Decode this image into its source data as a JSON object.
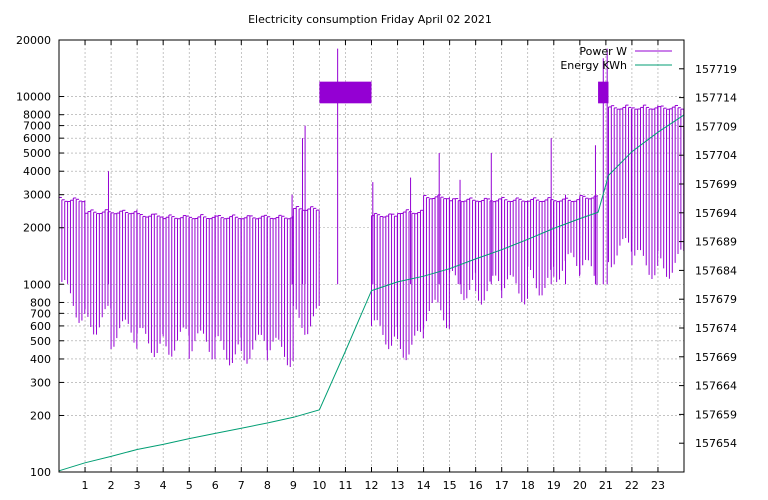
{
  "chart_data": {
    "type": "line",
    "title": "Electricity consumption Friday April 02 2021",
    "xlabel": "",
    "ylabel": "",
    "y2label": "",
    "xlim": [
      0,
      24
    ],
    "ylim": [
      100,
      20000
    ],
    "yscale": "log",
    "y2lim": [
      157649,
      157724
    ],
    "grid": true,
    "legend_position": "top-right",
    "x_ticks": [
      1,
      2,
      3,
      4,
      5,
      6,
      7,
      8,
      9,
      10,
      11,
      12,
      13,
      14,
      15,
      16,
      17,
      18,
      19,
      20,
      21,
      22,
      23
    ],
    "y_ticks": [
      {
        "value": 100,
        "label": "100"
      },
      {
        "value": 200,
        "label": "200"
      },
      {
        "value": 300,
        "label": "300"
      },
      {
        "value": 400,
        "label": "400"
      },
      {
        "value": 500,
        "label": "500"
      },
      {
        "value": 600,
        "label": "600"
      },
      {
        "value": 700,
        "label": "700"
      },
      {
        "value": 800,
        "label": "800"
      },
      {
        "value": 1000,
        "label": "1000"
      },
      {
        "value": 2000,
        "label": "2000"
      },
      {
        "value": 3000,
        "label": "3000"
      },
      {
        "value": 4000,
        "label": "4000"
      },
      {
        "value": 5000,
        "label": "5000"
      },
      {
        "value": 6000,
        "label": "6000"
      },
      {
        "value": 7000,
        "label": "7000"
      },
      {
        "value": 8000,
        "label": "8000"
      },
      {
        "value": 10000,
        "label": "10000"
      },
      {
        "value": 20000,
        "label": "20000"
      }
    ],
    "y2_ticks": [
      157654,
      157659,
      157664,
      157669,
      157674,
      157679,
      157684,
      157689,
      157694,
      157699,
      157704,
      157709,
      157714,
      157719
    ],
    "series": [
      {
        "name": "Power W",
        "axis": "y1",
        "color": "#9400d3",
        "style": "impulse-band",
        "segments": [
          {
            "x0": 0.0,
            "x1": 1.0,
            "low": 950,
            "high": 2900,
            "low_end": 700
          },
          {
            "x0": 1.0,
            "x1": 2.0,
            "low": 650,
            "high": 2500
          },
          {
            "x0": 2.0,
            "x1": 3.0,
            "low": 550,
            "high": 2500
          },
          {
            "x0": 3.0,
            "x1": 4.0,
            "low": 500,
            "high": 2400
          },
          {
            "x0": 4.0,
            "x1": 5.0,
            "low": 500,
            "high": 2350
          },
          {
            "x0": 5.0,
            "x1": 6.0,
            "low": 480,
            "high": 2350
          },
          {
            "x0": 6.0,
            "x1": 7.0,
            "low": 450,
            "high": 2350
          },
          {
            "x0": 7.0,
            "x1": 8.0,
            "low": 460,
            "high": 2350
          },
          {
            "x0": 8.0,
            "x1": 9.0,
            "low": 440,
            "high": 2350
          },
          {
            "x0": 9.0,
            "x1": 10.0,
            "low": 650,
            "high": 2600
          },
          {
            "x0": 10.0,
            "x1": 12.0,
            "low": 9200,
            "high": 12000
          },
          {
            "x0": 12.0,
            "x1": 13.0,
            "low": 550,
            "high": 2400
          },
          {
            "x0": 13.0,
            "x1": 14.0,
            "low": 480,
            "high": 2500
          },
          {
            "x0": 14.0,
            "x1": 15.0,
            "low": 700,
            "high": 3000
          },
          {
            "x0": 15.0,
            "x1": 16.0,
            "low": 1000,
            "high": 2900
          },
          {
            "x0": 16.0,
            "x1": 17.0,
            "low": 950,
            "high": 2900
          },
          {
            "x0": 17.0,
            "x1": 18.0,
            "low": 950,
            "high": 2900
          },
          {
            "x0": 18.0,
            "x1": 19.0,
            "low": 1050,
            "high": 2900
          },
          {
            "x0": 19.0,
            "x1": 20.0,
            "low": 1250,
            "high": 2900
          },
          {
            "x0": 20.0,
            "x1": 20.7,
            "low": 1150,
            "high": 3000
          },
          {
            "x0": 20.7,
            "x1": 21.1,
            "low": 9200,
            "high": 12000
          },
          {
            "x0": 21.1,
            "x1": 22.0,
            "low": 1500,
            "high": 9000
          },
          {
            "x0": 22.0,
            "x1": 23.0,
            "low": 1300,
            "high": 9000
          },
          {
            "x0": 23.0,
            "x1": 24.0,
            "low": 1300,
            "high": 9000
          }
        ],
        "spikes": [
          {
            "x": 1.9,
            "value": 4000
          },
          {
            "x": 8.95,
            "value": 3000
          },
          {
            "x": 9.35,
            "value": 6000
          },
          {
            "x": 9.45,
            "value": 7000
          },
          {
            "x": 10.7,
            "value": 18000
          },
          {
            "x": 12.05,
            "value": 3500
          },
          {
            "x": 13.5,
            "value": 3700
          },
          {
            "x": 14.6,
            "value": 5000
          },
          {
            "x": 15.4,
            "value": 3600
          },
          {
            "x": 16.6,
            "value": 5000
          },
          {
            "x": 18.9,
            "value": 6000
          },
          {
            "x": 19.45,
            "value": 3000
          },
          {
            "x": 20.6,
            "value": 5500
          },
          {
            "x": 20.9,
            "value": 16000
          },
          {
            "x": 21.05,
            "value": 18000
          }
        ]
      },
      {
        "name": "Energy KWh",
        "axis": "y2",
        "color": "#009e73",
        "style": "line",
        "x": [
          0.0,
          1.0,
          2.0,
          3.0,
          4.0,
          5.0,
          6.0,
          7.0,
          8.0,
          9.0,
          10.0,
          11.0,
          12.0,
          13.0,
          14.0,
          15.0,
          16.0,
          17.0,
          18.0,
          19.0,
          20.0,
          20.7,
          21.1,
          22.0,
          23.0,
          24.0
        ],
        "y": [
          157649.2,
          157650.6,
          157651.7,
          157652.9,
          157653.8,
          157654.8,
          157655.7,
          157656.6,
          157657.5,
          157658.5,
          157659.8,
          157670.0,
          157680.5,
          157682.0,
          157683.0,
          157684.3,
          157686.0,
          157687.6,
          157689.4,
          157691.3,
          157693.0,
          157694.1,
          157700.5,
          157704.6,
          157708.0,
          157711.0
        ]
      }
    ]
  }
}
